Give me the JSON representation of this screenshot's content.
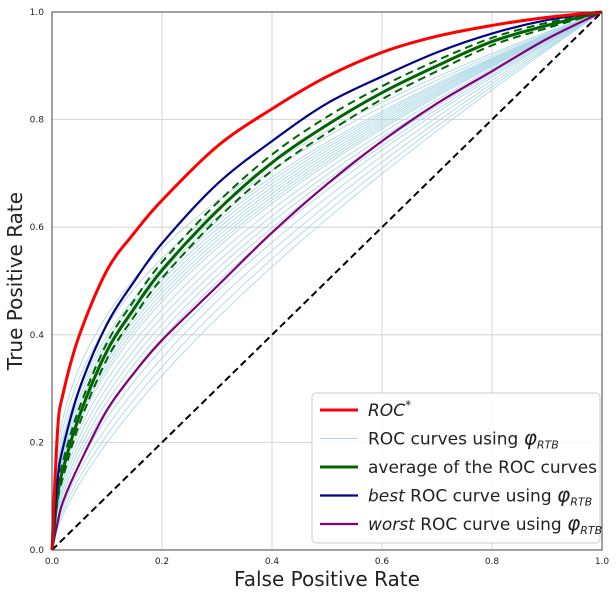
{
  "chart_data": {
    "type": "line",
    "xlabel": "False Positive Rate",
    "ylabel": "True Positive Rate",
    "xlim": [
      0,
      1
    ],
    "ylim": [
      0,
      1
    ],
    "grid": true,
    "legend_position": "bottom-right",
    "x_ticks": [
      "0.0",
      "0.2",
      "0.4",
      "0.6",
      "0.8",
      "1.0"
    ],
    "y_ticks": [
      "0.0",
      "0.2",
      "0.4",
      "0.6",
      "0.8",
      "1.0"
    ],
    "colors": {
      "roc_star": "#ff0000",
      "rtb_curves": "#add8e6",
      "average": "#006400",
      "best": "#00008b",
      "worst": "#800080",
      "diagonal": "#000000",
      "grid": "#cccccc"
    },
    "legend": [
      {
        "key": "roc_star",
        "parts": [
          {
            "text": "ROC",
            "italic": true
          },
          {
            "text": "*",
            "sup": true,
            "italic": true
          }
        ]
      },
      {
        "key": "rtb_curves",
        "parts": [
          {
            "text": "ROC curves using "
          },
          {
            "text": "φ",
            "italic": true,
            "big": true
          },
          {
            "text": "RTB",
            "sub": true,
            "italic": true
          }
        ]
      },
      {
        "key": "average",
        "parts": [
          {
            "text": "average of the ROC curves"
          }
        ]
      },
      {
        "key": "best",
        "parts": [
          {
            "text": "best",
            "italic": true
          },
          {
            "text": " ROC curve using "
          },
          {
            "text": "φ",
            "italic": true,
            "big": true
          },
          {
            "text": "RTB",
            "sub": true,
            "italic": true
          }
        ]
      },
      {
        "key": "worst",
        "parts": [
          {
            "text": "worst",
            "italic": true
          },
          {
            "text": " ROC curve using "
          },
          {
            "text": "φ",
            "italic": true,
            "big": true
          },
          {
            "text": "RTB",
            "sub": true,
            "italic": true
          }
        ]
      }
    ],
    "x": [
      0,
      0.01,
      0.02,
      0.05,
      0.1,
      0.15,
      0.2,
      0.3,
      0.4,
      0.5,
      0.6,
      0.7,
      0.8,
      0.9,
      1.0
    ],
    "series": [
      {
        "key": "roc_star",
        "values": [
          0,
          0.22,
          0.29,
          0.4,
          0.52,
          0.59,
          0.65,
          0.75,
          0.82,
          0.88,
          0.925,
          0.955,
          0.975,
          0.99,
          1.0
        ]
      },
      {
        "key": "best",
        "values": [
          0,
          0.13,
          0.19,
          0.3,
          0.42,
          0.5,
          0.57,
          0.68,
          0.76,
          0.83,
          0.88,
          0.925,
          0.96,
          0.985,
          1.0
        ]
      },
      {
        "key": "average",
        "values": [
          0,
          0.1,
          0.15,
          0.25,
          0.37,
          0.45,
          0.52,
          0.63,
          0.72,
          0.79,
          0.85,
          0.9,
          0.945,
          0.975,
          1.0
        ]
      },
      {
        "key": "worst",
        "values": [
          0,
          0.05,
          0.09,
          0.16,
          0.26,
          0.33,
          0.39,
          0.49,
          0.59,
          0.68,
          0.76,
          0.83,
          0.89,
          0.95,
          1.0
        ]
      }
    ],
    "average_band": {
      "upper": [
        0,
        0.11,
        0.165,
        0.265,
        0.385,
        0.465,
        0.535,
        0.645,
        0.735,
        0.805,
        0.862,
        0.91,
        0.952,
        0.98,
        1.0
      ],
      "lower": [
        0,
        0.09,
        0.135,
        0.235,
        0.355,
        0.435,
        0.505,
        0.615,
        0.705,
        0.775,
        0.838,
        0.89,
        0.938,
        0.97,
        1.0
      ]
    },
    "rtb_curve_exponents": [
      0.36,
      0.38,
      0.4,
      0.41,
      0.42,
      0.43,
      0.44,
      0.45,
      0.46,
      0.47,
      0.48,
      0.5,
      0.52,
      0.54,
      0.56,
      0.58,
      0.61,
      0.64,
      0.67,
      0.7
    ],
    "diagonal": {
      "x": [
        0,
        1
      ],
      "y": [
        0,
        1
      ]
    }
  }
}
